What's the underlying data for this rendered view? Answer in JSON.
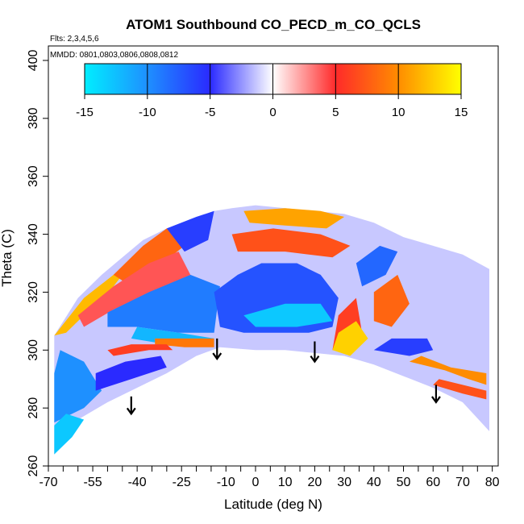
{
  "chart_data": {
    "type": "heatmap",
    "title": "ATOM1 Southbound CO_PECD_m_CO_QCLS",
    "subtitle_flights": "Flts: 2,3,4,5,6",
    "subtitle_dates": "MMDD: 0801,0803,0806,0808,0812",
    "xlabel": "Latitude (deg N)",
    "ylabel": "Theta (C)",
    "xlim": [
      -70,
      82
    ],
    "ylim": [
      260,
      405
    ],
    "x_ticks_labeled": [
      "-70",
      "-55",
      "-40",
      "-25",
      "-10",
      "0",
      "10",
      "20",
      "30",
      "40",
      "50",
      "60",
      "70",
      "80"
    ],
    "x_tick_values": [
      -70,
      -55,
      -40,
      -25,
      -10,
      0,
      10,
      20,
      30,
      40,
      50,
      60,
      70,
      80
    ],
    "x_minor_ticks": [
      -65,
      -60,
      -50,
      -45,
      -35,
      -30,
      -20,
      -15,
      -5,
      5,
      15,
      25,
      35,
      45,
      55,
      65,
      75
    ],
    "y_ticks_labeled": [
      "260",
      "280",
      "300",
      "320",
      "340",
      "360",
      "380",
      "400"
    ],
    "y_tick_values": [
      260,
      280,
      300,
      320,
      340,
      360,
      380,
      400
    ],
    "colorbar": {
      "min": -15,
      "max": 15,
      "tick_labels": [
        "-15",
        "-10",
        "-5",
        "0",
        "5",
        "10",
        "15"
      ],
      "tick_values": [
        -15,
        -10,
        -5,
        0,
        5,
        10,
        15
      ],
      "stops": [
        {
          "v": -15,
          "color": "#00eeff"
        },
        {
          "v": -10,
          "color": "#1e90ff"
        },
        {
          "v": -5,
          "color": "#2a2aff"
        },
        {
          "v": 0,
          "color": "#ffffff"
        },
        {
          "v": 5,
          "color": "#ff2a2a"
        },
        {
          "v": 10,
          "color": "#ff8c00"
        },
        {
          "v": 15,
          "color": "#ffff00"
        }
      ]
    },
    "domain_top_boundary": [
      [
        -68,
        305
      ],
      [
        -60,
        318
      ],
      [
        -52,
        326
      ],
      [
        -45,
        332
      ],
      [
        -38,
        338
      ],
      [
        -30,
        342
      ],
      [
        -20,
        346
      ],
      [
        -14,
        348
      ],
      [
        -8,
        349
      ],
      [
        0,
        350
      ],
      [
        10,
        349
      ],
      [
        20,
        348
      ],
      [
        30,
        347
      ],
      [
        40,
        344
      ],
      [
        50,
        339
      ],
      [
        60,
        336
      ],
      [
        70,
        333
      ],
      [
        79,
        328
      ]
    ],
    "domain_bottom_boundary": [
      [
        -68,
        264
      ],
      [
        -60,
        276
      ],
      [
        -50,
        282
      ],
      [
        -40,
        287
      ],
      [
        -30,
        292
      ],
      [
        -20,
        298
      ],
      [
        -12,
        301
      ],
      [
        0,
        300
      ],
      [
        10,
        300
      ],
      [
        20,
        299
      ],
      [
        30,
        298
      ],
      [
        40,
        295
      ],
      [
        50,
        291
      ],
      [
        60,
        287
      ],
      [
        70,
        282
      ],
      [
        79,
        272
      ]
    ],
    "field_regions": [
      {
        "value": 12,
        "polygon": [
          [
            -68,
            305
          ],
          [
            -58,
            318
          ],
          [
            -48,
            326
          ],
          [
            -42,
            330
          ],
          [
            -48,
            322
          ],
          [
            -56,
            314
          ],
          [
            -64,
            306
          ]
        ]
      },
      {
        "value": 8,
        "polygon": [
          [
            -48,
            326
          ],
          [
            -38,
            336
          ],
          [
            -30,
            342
          ],
          [
            -24,
            336
          ],
          [
            -34,
            328
          ],
          [
            -42,
            322
          ]
        ]
      },
      {
        "value": 4,
        "polygon": [
          [
            -60,
            312
          ],
          [
            -48,
            322
          ],
          [
            -36,
            330
          ],
          [
            -26,
            334
          ],
          [
            -22,
            326
          ],
          [
            -34,
            320
          ],
          [
            -48,
            314
          ],
          [
            -58,
            308
          ]
        ]
      },
      {
        "value": -6,
        "polygon": [
          [
            -30,
            342
          ],
          [
            -20,
            346
          ],
          [
            -14,
            348
          ],
          [
            -16,
            338
          ],
          [
            -24,
            334
          ]
        ]
      },
      {
        "value": -9,
        "polygon": [
          [
            -50,
            313
          ],
          [
            -36,
            320
          ],
          [
            -22,
            326
          ],
          [
            -12,
            322
          ],
          [
            -14,
            306
          ],
          [
            -26,
            306
          ],
          [
            -40,
            308
          ],
          [
            -50,
            308
          ]
        ]
      },
      {
        "value": -12,
        "polygon": [
          [
            -40,
            308
          ],
          [
            -26,
            306
          ],
          [
            -14,
            304
          ],
          [
            -14,
            302
          ],
          [
            -30,
            302
          ],
          [
            -42,
            304
          ]
        ]
      },
      {
        "value": -7,
        "polygon": [
          [
            -14,
            320
          ],
          [
            -6,
            326
          ],
          [
            2,
            330
          ],
          [
            14,
            330
          ],
          [
            22,
            326
          ],
          [
            28,
            318
          ],
          [
            26,
            308
          ],
          [
            18,
            306
          ],
          [
            6,
            306
          ],
          [
            -4,
            306
          ],
          [
            -12,
            308
          ]
        ]
      },
      {
        "value": -13,
        "polygon": [
          [
            -4,
            312
          ],
          [
            10,
            316
          ],
          [
            22,
            316
          ],
          [
            26,
            310
          ],
          [
            14,
            308
          ],
          [
            0,
            308
          ]
        ]
      },
      {
        "value": 11,
        "polygon": [
          [
            -4,
            348
          ],
          [
            10,
            349
          ],
          [
            22,
            348
          ],
          [
            30,
            346
          ],
          [
            24,
            342
          ],
          [
            10,
            343
          ],
          [
            -2,
            344
          ]
        ]
      },
      {
        "value": 7,
        "polygon": [
          [
            -8,
            340
          ],
          [
            6,
            342
          ],
          [
            22,
            340
          ],
          [
            32,
            336
          ],
          [
            26,
            332
          ],
          [
            10,
            334
          ],
          [
            -6,
            334
          ]
        ]
      },
      {
        "value": 9,
        "polygon": [
          [
            -22,
            304
          ],
          [
            -14,
            304
          ],
          [
            -14,
            301
          ],
          [
            -24,
            301
          ],
          [
            -34,
            302
          ],
          [
            -34,
            304
          ]
        ]
      },
      {
        "value": 6,
        "polygon": [
          [
            28,
            312
          ],
          [
            34,
            318
          ],
          [
            36,
            306
          ],
          [
            32,
            300
          ],
          [
            26,
            300
          ]
        ]
      },
      {
        "value": 13,
        "polygon": [
          [
            28,
            306
          ],
          [
            34,
            310
          ],
          [
            38,
            304
          ],
          [
            32,
            298
          ],
          [
            26,
            300
          ]
        ]
      },
      {
        "value": 8,
        "polygon": [
          [
            40,
            320
          ],
          [
            48,
            326
          ],
          [
            52,
            316
          ],
          [
            46,
            308
          ],
          [
            40,
            310
          ]
        ]
      },
      {
        "value": -8,
        "polygon": [
          [
            34,
            330
          ],
          [
            42,
            336
          ],
          [
            48,
            334
          ],
          [
            44,
            326
          ],
          [
            36,
            322
          ]
        ]
      },
      {
        "value": 10,
        "polygon": [
          [
            52,
            296
          ],
          [
            64,
            293
          ],
          [
            72,
            290
          ],
          [
            78,
            288
          ],
          [
            78,
            292
          ],
          [
            66,
            294
          ],
          [
            56,
            298
          ]
        ]
      },
      {
        "value": -6,
        "polygon": [
          [
            40,
            300
          ],
          [
            52,
            298
          ],
          [
            60,
            300
          ],
          [
            58,
            304
          ],
          [
            46,
            304
          ]
        ]
      },
      {
        "value": 7,
        "polygon": [
          [
            60,
            288
          ],
          [
            70,
            285
          ],
          [
            78,
            283
          ],
          [
            78,
            286
          ],
          [
            70,
            288
          ],
          [
            62,
            290
          ]
        ]
      },
      {
        "value": -10,
        "polygon": [
          [
            -68,
            275
          ],
          [
            -58,
            280
          ],
          [
            -52,
            286
          ],
          [
            -58,
            296
          ],
          [
            -66,
            300
          ],
          [
            -68,
            292
          ]
        ]
      },
      {
        "value": -13,
        "polygon": [
          [
            -68,
            264
          ],
          [
            -62,
            270
          ],
          [
            -58,
            276
          ],
          [
            -64,
            278
          ],
          [
            -68,
            274
          ]
        ]
      },
      {
        "value": -5,
        "polygon": [
          [
            -54,
            286
          ],
          [
            -42,
            290
          ],
          [
            -30,
            294
          ],
          [
            -32,
            298
          ],
          [
            -44,
            296
          ],
          [
            -54,
            292
          ]
        ]
      },
      {
        "value": 6,
        "polygon": [
          [
            -48,
            298
          ],
          [
            -36,
            300
          ],
          [
            -28,
            300
          ],
          [
            -30,
            302
          ],
          [
            -42,
            302
          ],
          [
            -50,
            300
          ]
        ]
      }
    ],
    "arrows": [
      {
        "x": -42,
        "y_from": 284,
        "y_to": 278
      },
      {
        "x": -13,
        "y_from": 304,
        "y_to": 297
      },
      {
        "x": 20,
        "y_from": 303,
        "y_to": 296
      },
      {
        "x": 61,
        "y_from": 288,
        "y_to": 282
      }
    ]
  }
}
